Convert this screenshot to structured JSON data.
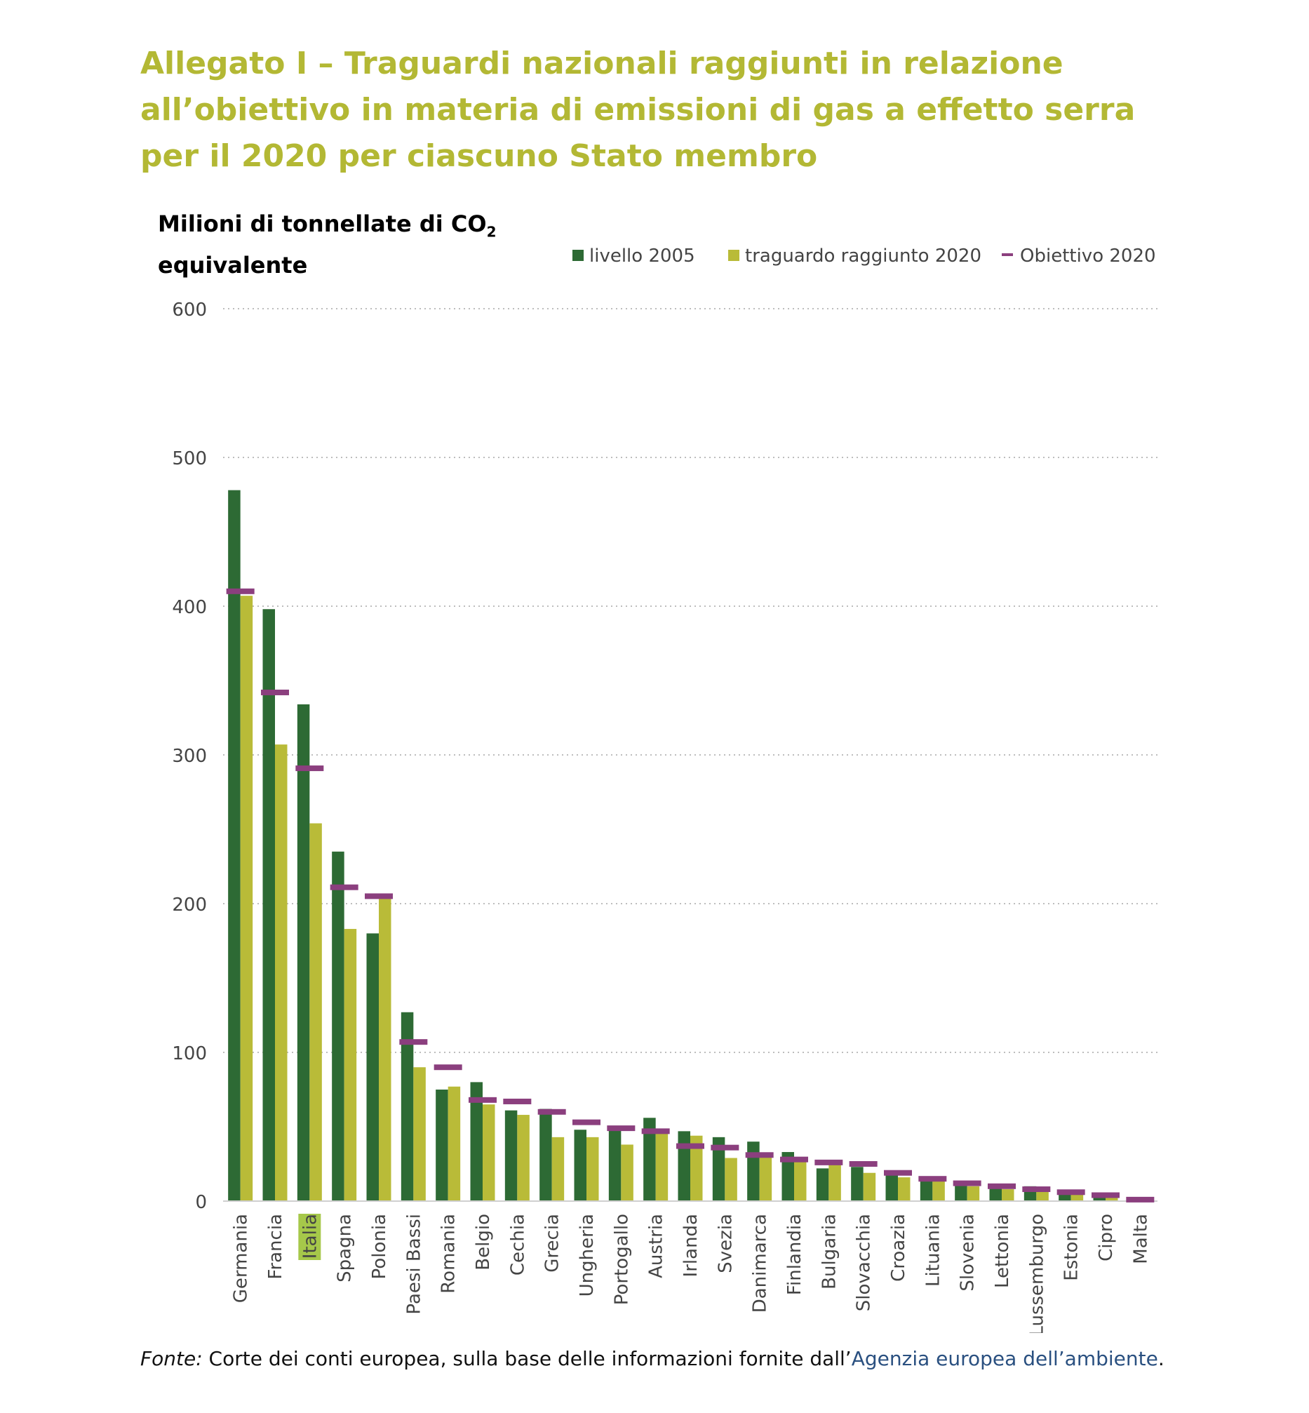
{
  "title_lines": [
    "Allegato I – Traguardi nazionali raggiunti in relazione",
    "all’obiettivo in materia di emissioni di gas a effetto serra",
    "per il 2020 per ciascuno Stato membro"
  ],
  "ylabel": {
    "line1": "Milioni di tonnellate di CO",
    "sub": "2",
    "line2": "equivalente"
  },
  "source": {
    "label": "Fonte:",
    "text": " Corte dei conti europea, sulla base delle informazioni fornite dall’",
    "link": "Agenzia europea dell’ambiente",
    "end": "."
  },
  "colors": {
    "title": "#b3b834",
    "level2005": "#2d6a34",
    "achieved2020": "#b9bb38",
    "target2020": "#8b3f7e",
    "highlight": "#a6c84a"
  },
  "chart_data": {
    "type": "bar",
    "ylim": [
      0,
      600
    ],
    "yticks": [
      0,
      100,
      200,
      300,
      400,
      500,
      600
    ],
    "grid": true,
    "legend_position": "top-right",
    "highlighted_category": "Italia",
    "categories": [
      "Germania",
      "Francia",
      "Italia",
      "Spagna",
      "Polonia",
      "Paesi Bassi",
      "Romania",
      "Belgio",
      "Cechia",
      "Grecia",
      "Ungheria",
      "Portogallo",
      "Austria",
      "Irlanda",
      "Svezia",
      "Danimarca",
      "Finlandia",
      "Bulgaria",
      "Slovacchia",
      "Croazia",
      "Lituania",
      "Slovenia",
      "Lettonia",
      "Lussemburgo",
      "Estonia",
      "Cipro",
      "Malta"
    ],
    "series": [
      {
        "name": "livello 2005",
        "type": "bar",
        "values": [
          478,
          398,
          334,
          235,
          180,
          127,
          75,
          80,
          61,
          62,
          48,
          49,
          56,
          47,
          43,
          40,
          33,
          22,
          23,
          18,
          14,
          12,
          9,
          10,
          6,
          4,
          1
        ]
      },
      {
        "name": "traguardo raggiunto 2020",
        "type": "bar",
        "values": [
          407,
          307,
          254,
          183,
          204,
          90,
          77,
          65,
          58,
          43,
          43,
          38,
          46,
          44,
          29,
          31,
          27,
          25,
          19,
          16,
          14,
          10,
          8,
          7,
          5,
          3,
          1
        ]
      },
      {
        "name": "Obiettivo 2020",
        "type": "marker",
        "values": [
          410,
          342,
          291,
          211,
          205,
          107,
          90,
          68,
          67,
          60,
          53,
          49,
          47,
          37,
          36,
          31,
          28,
          26,
          25,
          19,
          15,
          12,
          10,
          8,
          6,
          4,
          1
        ]
      }
    ]
  }
}
